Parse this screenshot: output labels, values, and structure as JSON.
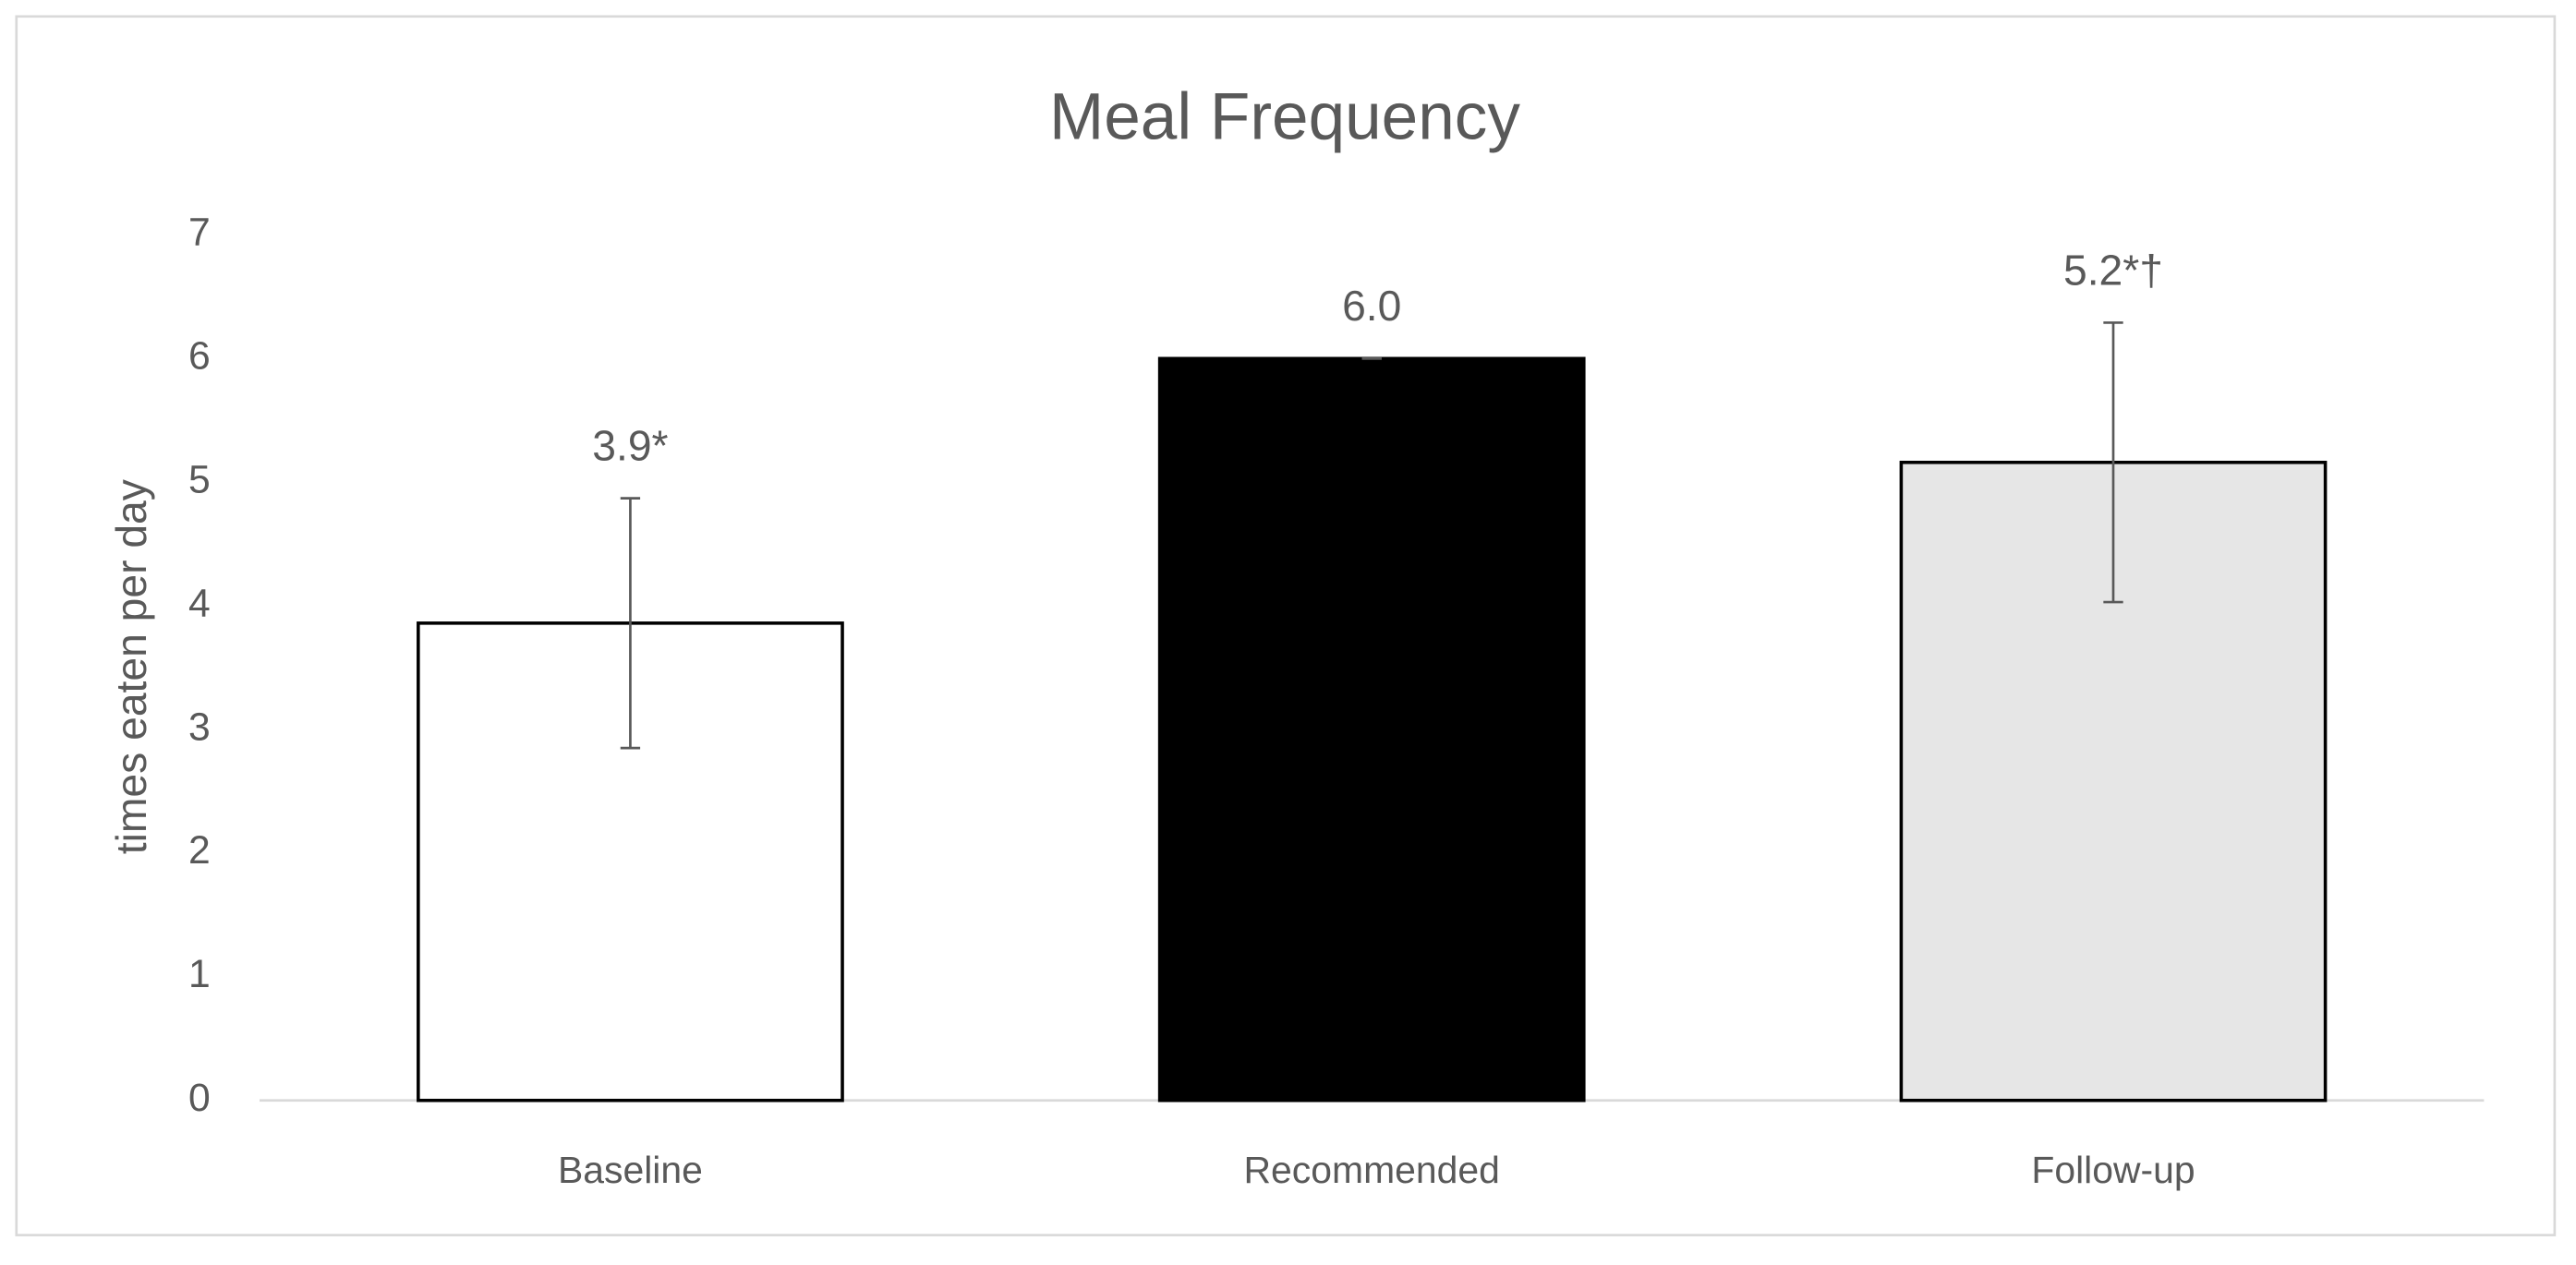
{
  "chart_data": {
    "type": "bar",
    "title": "Meal Frequency",
    "y_label": "times eaten per day",
    "categories": [
      "Baseline",
      "Recommended",
      "Follow-up"
    ],
    "values": [
      3.86,
      6.0,
      5.16
    ],
    "value_labels": [
      "3.9*",
      "6.0",
      "5.2*†"
    ],
    "errors": [
      1.01,
      0,
      1.13
    ],
    "colors": [
      "#ffffff",
      "#000000",
      "#e6e6e6"
    ],
    "ylim": [
      0,
      7
    ],
    "yticks": [
      0,
      1,
      2,
      3,
      4,
      5,
      6,
      7
    ],
    "grid": false
  }
}
